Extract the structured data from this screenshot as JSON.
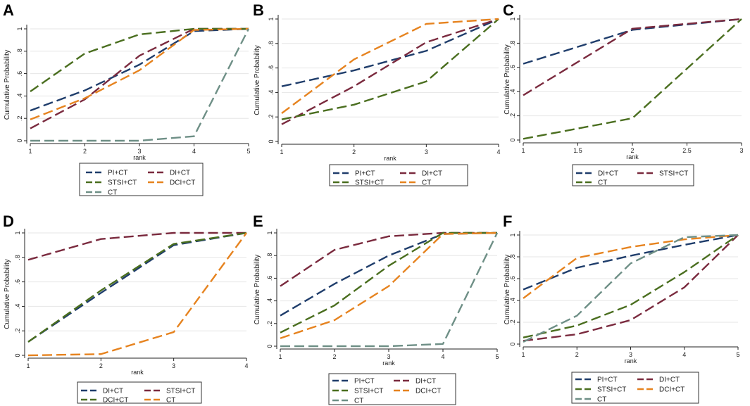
{
  "figure": {
    "series_colors": {
      "PI+CT": "#1f3d6b",
      "DI+CT": "#7a2a3e",
      "STSI+CT": "#4a6e1f",
      "DCI+CT": "#e6831f",
      "CT_main": "#e6831f",
      "CT_reference": "#6e8f86"
    }
  },
  "chart_data": [
    {
      "panel_label": "A",
      "type": "line",
      "xlabel": "rank",
      "ylabel": "Cumulative Probability",
      "xlim": [
        1,
        5
      ],
      "ylim": [
        0,
        1
      ],
      "x_ticks": [
        1,
        2,
        3,
        4,
        5
      ],
      "x_tick_labels": [
        "1",
        "2",
        "3",
        "4",
        "5"
      ],
      "y_ticks": [
        0,
        0.2,
        0.4,
        0.6,
        0.8,
        1
      ],
      "y_tick_labels": [
        "0",
        ".2",
        ".4",
        ".6",
        ".8",
        "1"
      ],
      "x": [
        1,
        2,
        3,
        4,
        5
      ],
      "series": [
        {
          "name": "PI+CT",
          "color": "#1f3d6b",
          "values": [
            0.27,
            0.45,
            0.68,
            0.98,
            1.0
          ]
        },
        {
          "name": "DI+CT",
          "color": "#7a2a3e",
          "values": [
            0.11,
            0.37,
            0.76,
            1.0,
            1.0
          ]
        },
        {
          "name": "STSI+CT",
          "color": "#4a6e1f",
          "values": [
            0.44,
            0.78,
            0.95,
            1.0,
            1.0
          ]
        },
        {
          "name": "DCI+CT",
          "color": "#e6831f",
          "values": [
            0.19,
            0.38,
            0.63,
            0.99,
            1.0
          ]
        },
        {
          "name": "CT",
          "color": "#6e8f86",
          "values": [
            0.0,
            0.0,
            0.0,
            0.04,
            1.0
          ]
        }
      ]
    },
    {
      "panel_label": "B",
      "type": "line",
      "xlabel": "rank",
      "ylabel": "Cumulative Probability",
      "xlim": [
        1,
        4
      ],
      "ylim": [
        0,
        1
      ],
      "x_ticks": [
        1,
        2,
        3,
        4
      ],
      "x_tick_labels": [
        "1",
        "2",
        "3",
        "4"
      ],
      "y_ticks": [
        0,
        0.2,
        0.4,
        0.6,
        0.8,
        1
      ],
      "y_tick_labels": [
        "0",
        ".2",
        ".4",
        ".6",
        ".8",
        "1"
      ],
      "x": [
        1,
        2,
        3,
        4
      ],
      "series": [
        {
          "name": "PI+CT",
          "color": "#1f3d6b",
          "values": [
            0.45,
            0.58,
            0.74,
            1.0
          ]
        },
        {
          "name": "DI+CT",
          "color": "#7a2a3e",
          "values": [
            0.14,
            0.45,
            0.81,
            1.0
          ]
        },
        {
          "name": "STSI+CT",
          "color": "#4a6e1f",
          "values": [
            0.18,
            0.3,
            0.49,
            1.0
          ]
        },
        {
          "name": "CT",
          "color": "#e6831f",
          "values": [
            0.23,
            0.67,
            0.96,
            1.0
          ]
        }
      ]
    },
    {
      "panel_label": "C",
      "type": "line",
      "xlabel": "rank",
      "ylabel": "Cumulative Probability",
      "xlim": [
        1,
        3
      ],
      "ylim": [
        0,
        1
      ],
      "x_ticks": [
        1,
        1.5,
        2,
        2.5,
        3
      ],
      "x_tick_labels": [
        "1",
        "1.5",
        "2",
        "2.5",
        "3"
      ],
      "y_ticks": [
        0,
        0.2,
        0.4,
        0.6,
        0.8,
        1
      ],
      "y_tick_labels": [
        "0",
        ".2",
        ".4",
        ".6",
        ".8",
        "1"
      ],
      "x": [
        1,
        2,
        3
      ],
      "series": [
        {
          "name": "DI+CT",
          "color": "#1f3d6b",
          "values": [
            0.63,
            0.91,
            1.0
          ]
        },
        {
          "name": "STSI+CT",
          "color": "#7a2a3e",
          "values": [
            0.37,
            0.92,
            1.0
          ]
        },
        {
          "name": "CT",
          "color": "#4a6e1f",
          "values": [
            0.01,
            0.18,
            1.0
          ]
        }
      ]
    },
    {
      "panel_label": "D",
      "type": "line",
      "xlabel": "rank",
      "ylabel": "Cumulative Probability",
      "xlim": [
        1,
        4
      ],
      "ylim": [
        0,
        1
      ],
      "x_ticks": [
        1,
        2,
        3,
        4
      ],
      "x_tick_labels": [
        "1",
        "2",
        "3",
        "4"
      ],
      "y_ticks": [
        0,
        0.2,
        0.4,
        0.6,
        0.8,
        1
      ],
      "y_tick_labels": [
        "0",
        ".2",
        ".4",
        ".6",
        ".8",
        "1"
      ],
      "x": [
        1,
        2,
        3,
        4
      ],
      "series": [
        {
          "name": "DI+CT",
          "color": "#1f3d6b",
          "values": [
            0.11,
            0.51,
            0.9,
            1.0
          ]
        },
        {
          "name": "STSI+CT",
          "color": "#7a2a3e",
          "values": [
            0.78,
            0.95,
            1.0,
            1.0
          ]
        },
        {
          "name": "DCI+CT",
          "color": "#4a6e1f",
          "values": [
            0.11,
            0.53,
            0.91,
            1.0
          ]
        },
        {
          "name": "CT",
          "color": "#e6831f",
          "values": [
            0.0,
            0.01,
            0.19,
            1.0
          ]
        }
      ]
    },
    {
      "panel_label": "E",
      "type": "line",
      "xlabel": "rank",
      "ylabel": "Cumulative Probability",
      "xlim": [
        1,
        5
      ],
      "ylim": [
        0,
        1
      ],
      "x_ticks": [
        1,
        2,
        3,
        4,
        5
      ],
      "x_tick_labels": [
        "1",
        "2",
        "3",
        "4",
        "5"
      ],
      "y_ticks": [
        0,
        0.2,
        0.4,
        0.6,
        0.8,
        1
      ],
      "y_tick_labels": [
        "0",
        ".2",
        ".4",
        ".6",
        ".8",
        "1"
      ],
      "x": [
        1,
        2,
        3,
        4,
        5
      ],
      "series": [
        {
          "name": "PI+CT",
          "color": "#1f3d6b",
          "values": [
            0.27,
            0.55,
            0.8,
            0.99,
            1.0
          ]
        },
        {
          "name": "DI+CT",
          "color": "#7a2a3e",
          "values": [
            0.53,
            0.85,
            0.97,
            1.0,
            1.0
          ]
        },
        {
          "name": "STSI+CT",
          "color": "#4a6e1f",
          "values": [
            0.12,
            0.36,
            0.71,
            1.0,
            1.0
          ]
        },
        {
          "name": "DCI+CT",
          "color": "#e6831f",
          "values": [
            0.07,
            0.23,
            0.53,
            0.99,
            1.0
          ]
        },
        {
          "name": "CT",
          "color": "#6e8f86",
          "values": [
            0.0,
            0.0,
            0.0,
            0.02,
            1.0
          ]
        }
      ]
    },
    {
      "panel_label": "F",
      "type": "line",
      "xlabel": "rank",
      "ylabel": "Cumulative Probability",
      "xlim": [
        1,
        5
      ],
      "ylim": [
        0,
        1
      ],
      "x_ticks": [
        1,
        2,
        3,
        4,
        5
      ],
      "x_tick_labels": [
        "1",
        "2",
        "3",
        "4",
        "5"
      ],
      "y_ticks": [
        0,
        0.2,
        0.4,
        0.6,
        0.8,
        1
      ],
      "y_tick_labels": [
        "0",
        ".2",
        ".4",
        ".6",
        ".8",
        "1"
      ],
      "x": [
        1,
        2,
        3,
        4,
        5
      ],
      "series": [
        {
          "name": "PI+CT",
          "color": "#1f3d6b",
          "values": [
            0.5,
            0.7,
            0.81,
            0.91,
            1.0
          ]
        },
        {
          "name": "DI+CT",
          "color": "#7a2a3e",
          "values": [
            0.03,
            0.09,
            0.22,
            0.52,
            1.0
          ]
        },
        {
          "name": "STSI+CT",
          "color": "#4a6e1f",
          "values": [
            0.06,
            0.17,
            0.36,
            0.66,
            1.0
          ]
        },
        {
          "name": "DCI+CT",
          "color": "#e6831f",
          "values": [
            0.42,
            0.79,
            0.89,
            0.96,
            1.0
          ]
        },
        {
          "name": "CT",
          "color": "#6e8f86",
          "values": [
            0.02,
            0.26,
            0.74,
            0.98,
            1.0
          ]
        }
      ]
    }
  ]
}
